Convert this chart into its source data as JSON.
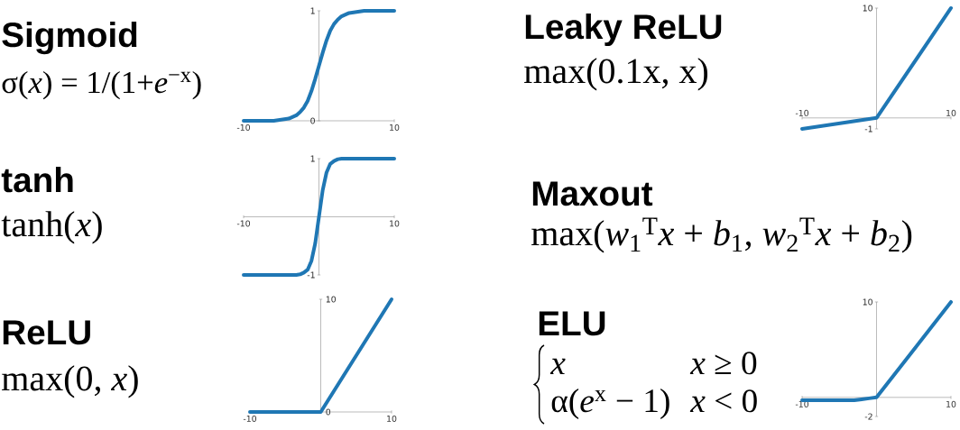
{
  "chart_data": [
    {
      "type": "line",
      "title": "Sigmoid",
      "subtitle": "σ(*x*) = 1/(1+*e*$^{−x}$)",
      "color": "#1f77b4",
      "x": [
        -10,
        -6,
        -5,
        -4,
        -3,
        -2.5,
        -2,
        -1.5,
        -1,
        -0.5,
        0,
        0.5,
        1,
        1.5,
        2,
        2.5,
        3,
        4,
        5,
        6,
        10
      ],
      "values": [
        0,
        0,
        0.01,
        0.02,
        0.05,
        0.08,
        0.12,
        0.18,
        0.27,
        0.38,
        0.5,
        0.62,
        0.73,
        0.82,
        0.88,
        0.92,
        0.95,
        0.98,
        0.99,
        1,
        1
      ],
      "xlim": [
        -10,
        10
      ],
      "ylim": [
        0,
        1
      ],
      "xticks": [
        -10,
        10
      ],
      "yticks": [
        0,
        1
      ]
    },
    {
      "type": "line",
      "title": "Leaky ReLU",
      "subtitle": "max(0.1x, x)",
      "color": "#1f77b4",
      "x": [
        -10,
        0,
        10
      ],
      "values": [
        -1,
        0,
        10
      ],
      "xlim": [
        -10,
        10
      ],
      "ylim": [
        -1,
        10
      ],
      "xticks": [
        -10,
        10
      ],
      "yticks": [
        -1,
        10
      ]
    },
    {
      "type": "line",
      "title": "tanh",
      "subtitle": "tanh(*x*)",
      "color": "#1f77b4",
      "x": [
        -10,
        -3,
        -2.5,
        -2,
        -1.5,
        -1,
        -0.5,
        0,
        0.5,
        1,
        1.5,
        2,
        2.5,
        3,
        10
      ],
      "values": [
        -1,
        -1,
        -0.99,
        -0.96,
        -0.91,
        -0.76,
        -0.46,
        0,
        0.46,
        0.76,
        0.91,
        0.96,
        0.99,
        1,
        1
      ],
      "xlim": [
        -10,
        10
      ],
      "ylim": [
        -1,
        1
      ],
      "xticks": [
        -10,
        10
      ],
      "yticks": [
        -1,
        1
      ]
    },
    {
      "type": "other",
      "title": "Maxout",
      "subtitle": "max(*w*$_{1}$$^{T}$*x* + *b*$_{1}$, *w*$_{2}$$^{T}$*x* + *b*$_{2}$)"
    },
    {
      "type": "line",
      "title": "ReLU",
      "subtitle": "max(0, *x*)",
      "color": "#1f77b4",
      "x": [
        -10,
        0,
        10
      ],
      "values": [
        0,
        0,
        10
      ],
      "xlim": [
        -10,
        10
      ],
      "ylim": [
        0,
        10
      ],
      "xticks": [
        -10,
        10
      ],
      "yticks": [
        0,
        10
      ]
    },
    {
      "type": "line",
      "title": "ELU",
      "annotations": [
        "*x*",
        "*x* ≥ 0",
        "α(*e*$^{x}$ − 1)",
        "*x* < 0"
      ],
      "color": "#1f77b4",
      "x": [
        -10,
        -3,
        -2,
        -1,
        0,
        10
      ],
      "values": [
        -0.3,
        -0.3,
        -0.2,
        -0.1,
        0,
        10
      ],
      "xlim": [
        -10,
        10
      ],
      "ylim": [
        -2,
        10
      ],
      "xticks": [
        -10,
        10
      ],
      "yticks": [
        -2,
        10
      ]
    }
  ]
}
